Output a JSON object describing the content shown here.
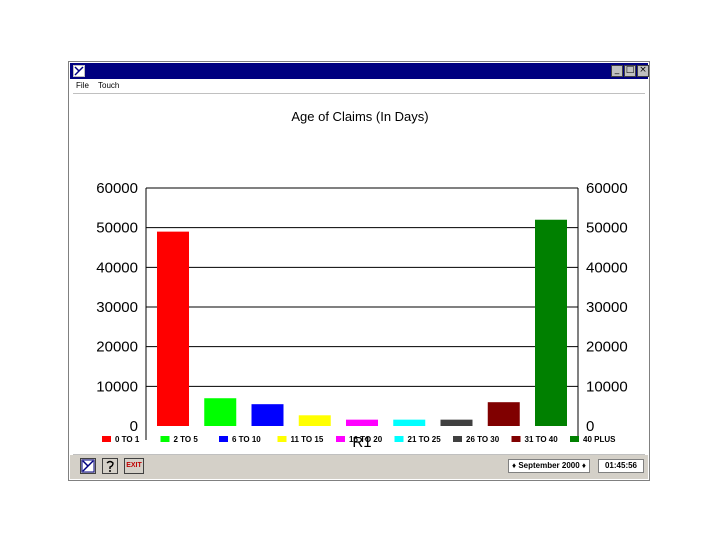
{
  "window": {
    "menu": [
      "File",
      "Touch"
    ],
    "controls": {
      "minimize": "_",
      "maximize": "□",
      "close": "×"
    }
  },
  "statusbar": {
    "date": "September 2000",
    "time": "01:45:56",
    "buttons": [
      "cursor-icon",
      "help-icon",
      "exit-icon"
    ],
    "exit_label": "EXIT"
  },
  "colors": {
    "titlebar": "#000080",
    "series": [
      "#ff0000",
      "#00ff00",
      "#0000ff",
      "#ffff00",
      "#ff00ff",
      "#00ffff",
      "#404040",
      "#800000",
      "#008000"
    ]
  },
  "chart_data": {
    "type": "bar",
    "title": "Age of Claims (In Days)",
    "categories": [
      "R1"
    ],
    "series": [
      {
        "name": "0 TO 1",
        "values": [
          49000
        ],
        "color": "#ff0000"
      },
      {
        "name": "2 TO 5",
        "values": [
          7000
        ],
        "color": "#00ff00"
      },
      {
        "name": "6 TO 10",
        "values": [
          5500
        ],
        "color": "#0000ff"
      },
      {
        "name": "11 TO 15",
        "values": [
          2700
        ],
        "color": "#ffff00"
      },
      {
        "name": "16 TO 20",
        "values": [
          1600
        ],
        "color": "#ff00ff"
      },
      {
        "name": "21 TO 25",
        "values": [
          1600
        ],
        "color": "#00ffff"
      },
      {
        "name": "26 TO 30",
        "values": [
          1600
        ],
        "color": "#404040"
      },
      {
        "name": "31 TO 40",
        "values": [
          6000
        ],
        "color": "#800000"
      },
      {
        "name": "40 PLUS",
        "values": [
          52000
        ],
        "color": "#008000"
      }
    ],
    "yticks": [
      0,
      10000,
      20000,
      30000,
      40000,
      50000,
      60000
    ],
    "ylim": [
      0,
      60000
    ],
    "grid": true,
    "dual_axis_labels": true,
    "legend_position": "bottom"
  }
}
